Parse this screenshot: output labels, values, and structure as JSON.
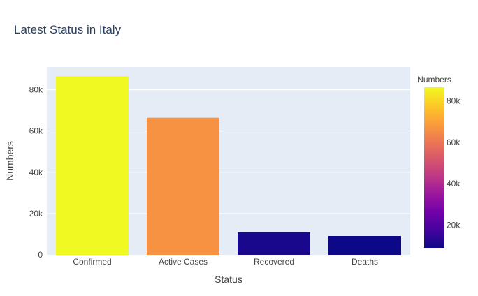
{
  "chart_data": {
    "type": "bar",
    "title": "Latest Status in Italy",
    "xlabel": "Status",
    "ylabel": "Numbers",
    "categories": [
      "Confirmed",
      "Active Cases",
      "Recovered",
      "Deaths"
    ],
    "values": [
      86498,
      66414,
      10950,
      9134
    ],
    "ylim": [
      0,
      91000
    ],
    "yticks": [
      0,
      20000,
      40000,
      60000,
      80000
    ],
    "ytick_labels": [
      "0",
      "20k",
      "40k",
      "60k",
      "80k"
    ],
    "grid": true,
    "colorbar": {
      "title": "Numbers",
      "range": [
        9134,
        86498
      ],
      "ticks": [
        20000,
        40000,
        60000,
        80000
      ],
      "tick_labels": [
        "20k",
        "40k",
        "60k",
        "80k"
      ],
      "colorscale": [
        "#0d0887",
        "#46039f",
        "#7201a8",
        "#9c179e",
        "#bd3786",
        "#d8576b",
        "#ed7953",
        "#fb9f3a",
        "#fdca26",
        "#f0f921"
      ]
    },
    "plot_background": "#e5ecf6",
    "gridline_color": "#ffffff"
  }
}
